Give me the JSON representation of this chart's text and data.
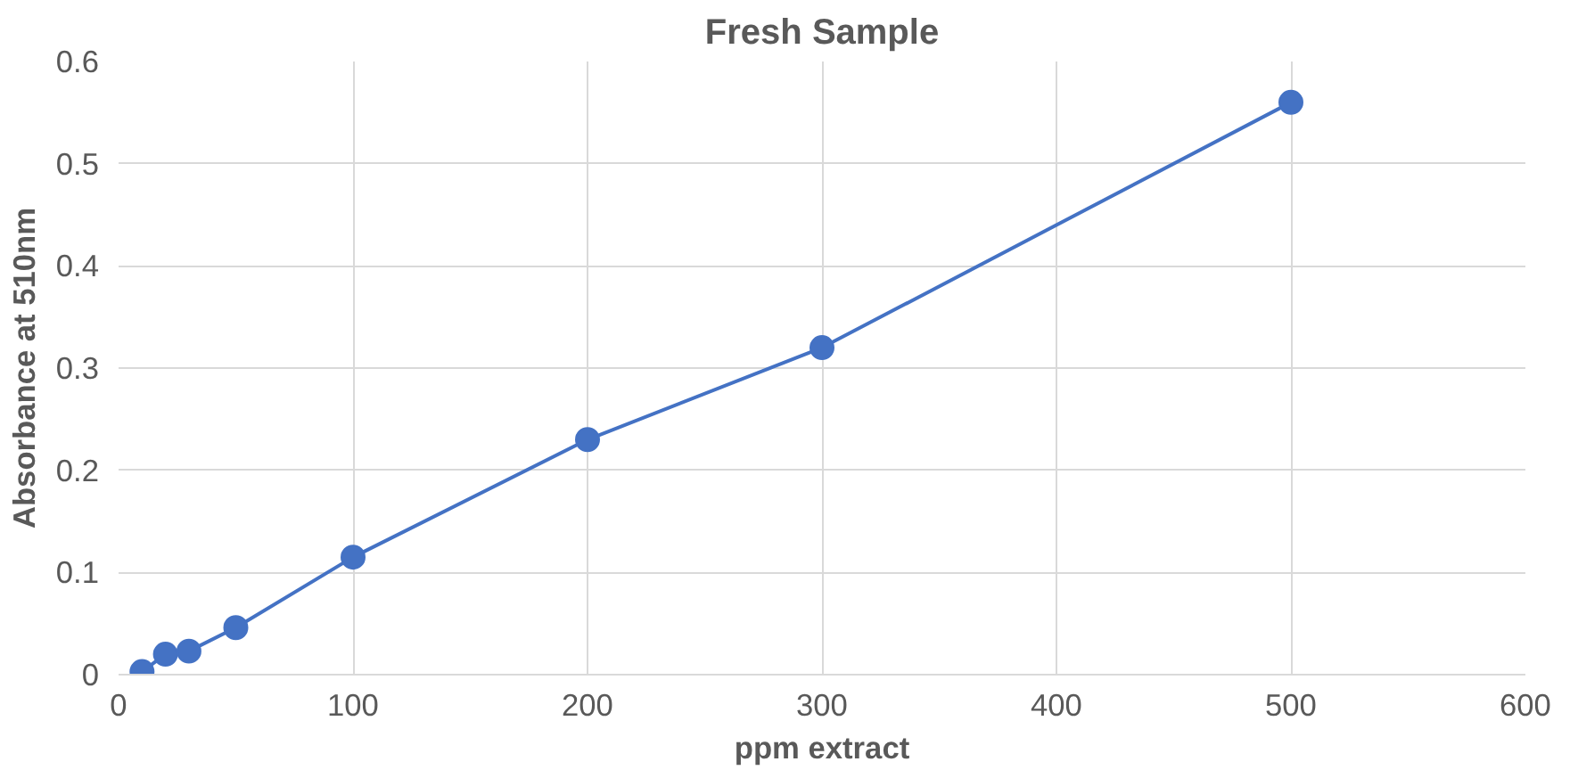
{
  "chart_data": {
    "type": "line",
    "title": "Fresh Sample",
    "xlabel": "ppm extract",
    "ylabel": "Absorbance at 510nm",
    "series": [
      {
        "color": "#4472c4",
        "x": [
          10,
          20,
          30,
          50,
          100,
          200,
          300,
          500
        ],
        "values": [
          0.003,
          0.02,
          0.023,
          0.046,
          0.115,
          0.23,
          0.32,
          0.56
        ]
      }
    ],
    "xlim": [
      0,
      600
    ],
    "xticks": [
      0,
      100,
      200,
      300,
      400,
      500,
      600
    ],
    "ylim": [
      0,
      0.6
    ],
    "yticks": [
      0,
      0.1,
      0.2,
      0.3,
      0.4,
      0.5,
      0.6
    ],
    "grid": true,
    "marker": "circle",
    "line_style": "solid"
  }
}
